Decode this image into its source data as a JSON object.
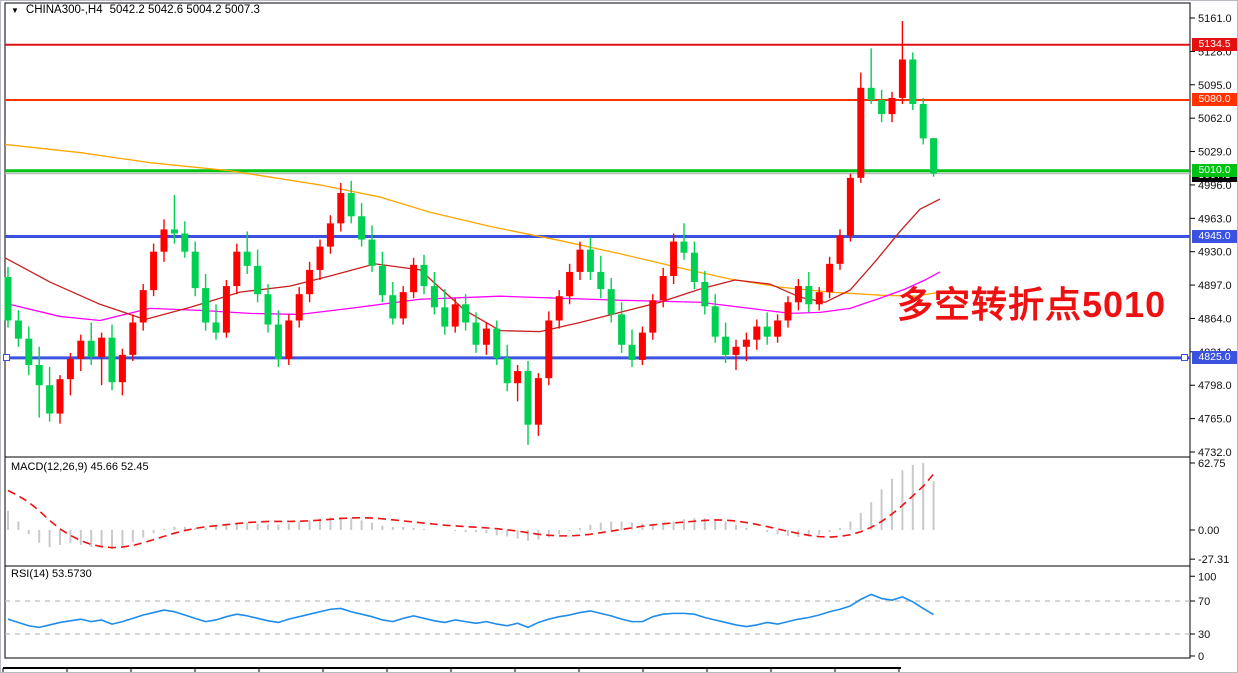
{
  "header": {
    "dropdown_icon": "▼",
    "title": "CHINA300-,H4",
    "ohlc": "5042.2 5042.6 5004.2 5007.3"
  },
  "annotation": {
    "text": "多空转折点5010",
    "color": "#ee1111"
  },
  "colors": {
    "candle_up": "#fe0000",
    "candle_down": "#00d051",
    "ma_slow": "#ffa500",
    "ma_mid": "#ff00ff",
    "ma_fast": "#c81e1e",
    "macd_bar": "#c9c9c9",
    "macd_signal": "#ee1111",
    "rsi_line": "#1f8ceb",
    "grid_dashed": "#bdbdbd",
    "axis_text": "#111111",
    "current_line": "#bbbbbb"
  },
  "chart_data": {
    "type": "candlestick",
    "symbol": "CHINA300-",
    "timeframe": "H4",
    "price_axis": {
      "min": 4732,
      "max": 5161,
      "tick_step": 33,
      "labels": [
        "5161.0",
        "5128.0",
        "5095.0",
        "5062.0",
        "5029.0",
        "4996.0",
        "4963.0",
        "4930.0",
        "4897.0",
        "4864.0",
        "4831.0",
        "4798.0",
        "4765.0",
        "4732.0"
      ]
    },
    "levels": [
      {
        "label": "5134.5",
        "price": 5134.5,
        "color": "#e31212",
        "thickness": 2,
        "kind": "resistance"
      },
      {
        "label": "5080.0",
        "price": 5080.0,
        "color": "#ff3200",
        "thickness": 2,
        "kind": "resistance"
      },
      {
        "label": "5010.0",
        "price": 5010.0,
        "color": "#00c213",
        "thickness": 3,
        "kind": "pivot"
      },
      {
        "label": "4945.0",
        "price": 4945.0,
        "color": "#3b52e0",
        "thickness": 3,
        "kind": "support"
      },
      {
        "label": "4825.0",
        "price": 4825.0,
        "color": "#3b52e0",
        "thickness": 3,
        "kind": "support",
        "handles": true
      }
    ],
    "current_price": {
      "label": "5007.3",
      "price": 5007.3,
      "badge_bg": "#000000"
    },
    "candles": [
      [
        4905,
        4915,
        4855,
        4862
      ],
      [
        4862,
        4872,
        4836,
        4844
      ],
      [
        4844,
        4856,
        4808,
        4818
      ],
      [
        4818,
        4836,
        4766,
        4798
      ],
      [
        4798,
        4816,
        4762,
        4770
      ],
      [
        4770,
        4808,
        4760,
        4804
      ],
      [
        4804,
        4830,
        4788,
        4824
      ],
      [
        4824,
        4848,
        4812,
        4842
      ],
      [
        4842,
        4860,
        4818,
        4826
      ],
      [
        4826,
        4850,
        4798,
        4845
      ],
      [
        4845,
        4858,
        4793,
        4801
      ],
      [
        4801,
        4834,
        4788,
        4828
      ],
      [
        4828,
        4868,
        4822,
        4860
      ],
      [
        4860,
        4898,
        4852,
        4892
      ],
      [
        4892,
        4938,
        4886,
        4930
      ],
      [
        4930,
        4962,
        4920,
        4952
      ],
      [
        4952,
        4986,
        4938,
        4948
      ],
      [
        4948,
        4960,
        4924,
        4930
      ],
      [
        4930,
        4940,
        4886,
        4894
      ],
      [
        4894,
        4908,
        4852,
        4860
      ],
      [
        4860,
        4878,
        4843,
        4850
      ],
      [
        4850,
        4902,
        4845,
        4896
      ],
      [
        4896,
        4938,
        4888,
        4930
      ],
      [
        4930,
        4950,
        4908,
        4916
      ],
      [
        4916,
        4932,
        4880,
        4888
      ],
      [
        4888,
        4898,
        4850,
        4858
      ],
      [
        4858,
        4872,
        4816,
        4824
      ],
      [
        4824,
        4868,
        4818,
        4862
      ],
      [
        4862,
        4895,
        4855,
        4888
      ],
      [
        4888,
        4920,
        4880,
        4912
      ],
      [
        4912,
        4942,
        4902,
        4935
      ],
      [
        4935,
        4966,
        4928,
        4958
      ],
      [
        4958,
        4998,
        4950,
        4988
      ],
      [
        4988,
        5000,
        4958,
        4965
      ],
      [
        4965,
        4978,
        4935,
        4942
      ],
      [
        4942,
        4956,
        4910,
        4916
      ],
      [
        4916,
        4930,
        4880,
        4887
      ],
      [
        4887,
        4900,
        4858,
        4864
      ],
      [
        4864,
        4896,
        4858,
        4890
      ],
      [
        4890,
        4924,
        4884,
        4917
      ],
      [
        4917,
        4927,
        4888,
        4896
      ],
      [
        4896,
        4910,
        4868,
        4875
      ],
      [
        4875,
        4893,
        4848,
        4856
      ],
      [
        4856,
        4884,
        4850,
        4878
      ],
      [
        4878,
        4888,
        4852,
        4860
      ],
      [
        4860,
        4870,
        4830,
        4838
      ],
      [
        4838,
        4860,
        4828,
        4854
      ],
      [
        4854,
        4862,
        4818,
        4825
      ],
      [
        4825,
        4838,
        4792,
        4800
      ],
      [
        4800,
        4818,
        4782,
        4812
      ],
      [
        4812,
        4822,
        4739,
        4759
      ],
      [
        4759,
        4810,
        4748,
        4805
      ],
      [
        4805,
        4871,
        4798,
        4862
      ],
      [
        4862,
        4892,
        4854,
        4886
      ],
      [
        4886,
        4918,
        4878,
        4910
      ],
      [
        4910,
        4940,
        4902,
        4932
      ],
      [
        4932,
        4944,
        4902,
        4910
      ],
      [
        4910,
        4926,
        4884,
        4893
      ],
      [
        4893,
        4904,
        4860,
        4868
      ],
      [
        4868,
        4880,
        4830,
        4838
      ],
      [
        4838,
        4853,
        4816,
        4823
      ],
      [
        4823,
        4856,
        4818,
        4850
      ],
      [
        4850,
        4888,
        4843,
        4882
      ],
      [
        4882,
        4914,
        4875,
        4906
      ],
      [
        4906,
        4948,
        4898,
        4940
      ],
      [
        4940,
        4958,
        4922,
        4929
      ],
      [
        4929,
        4940,
        4893,
        4900
      ],
      [
        4900,
        4911,
        4868,
        4876
      ],
      [
        4876,
        4888,
        4840,
        4846
      ],
      [
        4846,
        4860,
        4820,
        4828
      ],
      [
        4828,
        4843,
        4813,
        4836
      ],
      [
        4836,
        4850,
        4822,
        4843
      ],
      [
        4843,
        4863,
        4833,
        4856
      ],
      [
        4856,
        4870,
        4838,
        4846
      ],
      [
        4846,
        4868,
        4840,
        4862
      ],
      [
        4862,
        4886,
        4855,
        4880
      ],
      [
        4880,
        4903,
        4872,
        4896
      ],
      [
        4896,
        4910,
        4870,
        4878
      ],
      [
        4878,
        4895,
        4872,
        4890
      ],
      [
        4890,
        4925,
        4884,
        4918
      ],
      [
        4918,
        4952,
        4912,
        4946
      ],
      [
        4946,
        5007,
        4940,
        5003
      ],
      [
        5003,
        5107,
        4998,
        5092
      ],
      [
        5092,
        5131,
        5076,
        5080
      ],
      [
        5080,
        5090,
        5058,
        5066
      ],
      [
        5066,
        5088,
        5058,
        5082
      ],
      [
        5082,
        5158,
        5076,
        5120
      ],
      [
        5120,
        5127,
        5070,
        5076
      ],
      [
        5076,
        5082,
        5036,
        5042
      ],
      [
        5042.2,
        5042.6,
        5004.2,
        5007.3
      ]
    ],
    "moving_averages": [
      {
        "name": "ma-slow-orange",
        "color": "#ffa500",
        "points": [
          [
            5,
            5036
          ],
          [
            80,
            5028
          ],
          [
            150,
            5018
          ],
          [
            230,
            5010
          ],
          [
            320,
            4996
          ],
          [
            380,
            4984
          ],
          [
            430,
            4969
          ],
          [
            490,
            4955
          ],
          [
            560,
            4941
          ],
          [
            620,
            4928
          ],
          [
            680,
            4914
          ],
          [
            730,
            4903
          ],
          [
            780,
            4895
          ],
          [
            830,
            4890
          ],
          [
            880,
            4887
          ],
          [
            915,
            4886
          ],
          [
            940,
            4890
          ]
        ]
      },
      {
        "name": "ma-mid-magenta",
        "color": "#ff00ff",
        "points": [
          [
            5,
            4879
          ],
          [
            60,
            4866
          ],
          [
            100,
            4862
          ],
          [
            150,
            4874
          ],
          [
            200,
            4872
          ],
          [
            250,
            4869
          ],
          [
            300,
            4868
          ],
          [
            350,
            4874
          ],
          [
            420,
            4883
          ],
          [
            500,
            4886
          ],
          [
            560,
            4884
          ],
          [
            620,
            4882
          ],
          [
            660,
            4881
          ],
          [
            700,
            4880
          ],
          [
            750,
            4874
          ],
          [
            790,
            4869
          ],
          [
            820,
            4870
          ],
          [
            850,
            4874
          ],
          [
            880,
            4884
          ],
          [
            905,
            4893
          ],
          [
            925,
            4902
          ],
          [
            940,
            4910
          ]
        ]
      },
      {
        "name": "ma-fast-darkred",
        "color": "#c81e1e",
        "points": [
          [
            5,
            4924
          ],
          [
            50,
            4900
          ],
          [
            100,
            4878
          ],
          [
            145,
            4863
          ],
          [
            190,
            4875
          ],
          [
            240,
            4890
          ],
          [
            290,
            4896
          ],
          [
            330,
            4906
          ],
          [
            375,
            4918
          ],
          [
            420,
            4912
          ],
          [
            465,
            4872
          ],
          [
            500,
            4852
          ],
          [
            540,
            4851
          ],
          [
            580,
            4860
          ],
          [
            620,
            4870
          ],
          [
            660,
            4880
          ],
          [
            700,
            4893
          ],
          [
            735,
            4902
          ],
          [
            770,
            4898
          ],
          [
            800,
            4885
          ],
          [
            825,
            4880
          ],
          [
            850,
            4892
          ],
          [
            875,
            4920
          ],
          [
            900,
            4950
          ],
          [
            920,
            4972
          ],
          [
            940,
            4982
          ]
        ]
      }
    ],
    "macd": {
      "label": "MACD(12,26,9) 45.66 52.45",
      "value_main": 45.66,
      "value_signal": 52.45,
      "axis": {
        "labels": [
          "62.75",
          "0.00",
          "-27.31"
        ],
        "values": [
          62.75,
          0,
          -27.31
        ]
      },
      "histogram": [
        18,
        8,
        -4,
        -12,
        -16,
        -14,
        -12,
        -14,
        -16,
        -17,
        -18,
        -15,
        -11,
        -7,
        -3,
        1,
        3,
        3,
        2,
        2,
        4,
        6,
        7,
        7,
        6,
        5,
        5,
        6,
        8,
        9,
        10.5,
        12,
        12,
        11,
        9,
        7,
        4,
        3,
        3,
        2,
        1,
        0,
        0,
        -1,
        -2,
        -2,
        -3,
        -5,
        -6,
        -8,
        -10,
        -9,
        -7,
        -4,
        -1,
        2,
        5,
        7,
        8,
        8,
        7,
        6,
        6,
        7,
        8,
        10,
        11,
        11,
        10,
        8,
        5,
        2,
        0,
        -2,
        -4,
        -5.5,
        -6.5,
        -6,
        -4.5,
        -2,
        2,
        8,
        16,
        26,
        38,
        48,
        56,
        61,
        62.75,
        45.66
      ],
      "signal": [
        37,
        32,
        26,
        18,
        9,
        1,
        -5,
        -10,
        -13.5,
        -15.5,
        -16.5,
        -16,
        -14.5,
        -12,
        -9,
        -6,
        -3,
        -0.5,
        1.5,
        3,
        4,
        5,
        6,
        7,
        7.5,
        8,
        8,
        8,
        8.2,
        8.6,
        9.2,
        10,
        10.8,
        11.3,
        11.5,
        11.2,
        10.5,
        9.5,
        8.5,
        7.5,
        6.5,
        5.5,
        4.5,
        3.8,
        3.2,
        2.6,
        2,
        1.2,
        0.2,
        -1,
        -2.5,
        -4,
        -5,
        -5.5,
        -5.5,
        -5,
        -4,
        -2.5,
        -1,
        0.5,
        2,
        3.5,
        4.8,
        5.8,
        6.6,
        7.4,
        8.2,
        9,
        9.4,
        9.2,
        8.4,
        7,
        5.2,
        3.2,
        1,
        -1.2,
        -3.2,
        -5,
        -6.2,
        -6.6,
        -6,
        -4.4,
        -1.6,
        2.5,
        8,
        15,
        23,
        32,
        41,
        52.45
      ]
    },
    "rsi": {
      "label": "RSI(14) 53.5730",
      "value": 53.573,
      "axis": {
        "labels": [
          "100",
          "70",
          "30",
          "0"
        ],
        "values": [
          100,
          70,
          30,
          0
        ]
      },
      "guide_levels": [
        70,
        30
      ],
      "values": [
        48,
        44,
        40,
        38,
        41,
        44,
        46,
        48,
        45,
        47,
        42,
        45,
        49,
        53,
        56,
        59,
        57,
        53,
        49,
        45,
        47,
        51,
        54,
        52,
        49,
        46,
        44,
        48,
        51,
        54,
        57,
        60,
        61,
        57,
        54,
        51,
        47,
        45,
        49,
        52,
        49,
        46,
        44,
        47,
        45,
        43,
        45,
        42,
        40,
        43,
        38,
        44,
        48,
        51,
        53,
        56,
        58,
        55,
        52,
        48,
        45,
        45,
        51,
        54,
        55,
        55,
        54,
        50,
        47,
        44,
        41,
        39,
        41,
        44,
        42,
        45,
        48,
        50,
        53,
        57,
        60,
        64,
        72,
        78,
        73,
        71,
        75,
        69,
        61,
        53.57
      ]
    }
  }
}
